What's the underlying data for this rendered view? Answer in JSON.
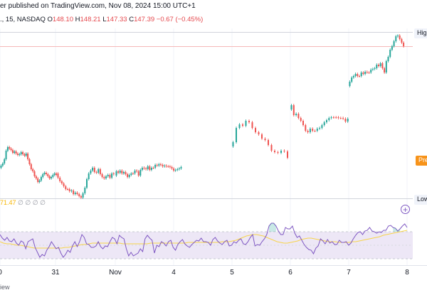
{
  "header": {
    "published_text": "er published on TradingView.com, Nov 08, 2024 15:00 UTC+1",
    "symbol_text": "., 15, NASDAQ",
    "ohlc": {
      "open_label": "O",
      "open": "148.10",
      "high_label": "H",
      "high": "148.21",
      "low_label": "L",
      "low": "147.33",
      "close_label": "C",
      "close": "147.39",
      "change": "−0.67 (−0.45%)"
    }
  },
  "price_tags": {
    "high": "High",
    "pre": "Pre",
    "low": "Low"
  },
  "rsi_legend": {
    "value": "71.47",
    "zeros": "∅ ∅ ∅ ∅"
  },
  "footer": {
    "text": "iew"
  },
  "colors": {
    "up": "#26a69a",
    "down": "#ef5350",
    "rsi": "#7e57c2",
    "rsi_ma": "#f7d44a",
    "band": "#ede7f6",
    "pre": "#f7931a"
  },
  "chart_data": {
    "type": "candlestick",
    "x_tick_labels": [
      "0",
      "31",
      "Nov",
      "4",
      "5",
      "6",
      "7",
      "8"
    ],
    "sessions": [
      {
        "label": "0",
        "closes": [
          233,
          230,
          224,
          212,
          207,
          209,
          211,
          215,
          213,
          216,
          218,
          217,
          214,
          217,
          219,
          216,
          224,
          231,
          238,
          241,
          248,
          251,
          256,
          254,
          249,
          245,
          243,
          245,
          248,
          251,
          249,
          246,
          244,
          246
        ]
      },
      {
        "label": "31",
        "closes": [
          250,
          255,
          258,
          262,
          266,
          266,
          269,
          268,
          273,
          271,
          273,
          276,
          278,
          272,
          264,
          252,
          244,
          240,
          236,
          242,
          243,
          238,
          245,
          249,
          251,
          248,
          246,
          250,
          244,
          245
        ]
      },
      {
        "label": "Nov",
        "closes": [
          241,
          243,
          240,
          244,
          242,
          245,
          249,
          246,
          244,
          244,
          240,
          241,
          247,
          239,
          236,
          237,
          238,
          234,
          239,
          236,
          236,
          232,
          233,
          231,
          232,
          234,
          233,
          234,
          234,
          235,
          237,
          240,
          239,
          238,
          237,
          235
        ]
      },
      {
        "label": "5",
        "closes": [
          200,
          180,
          175,
          177,
          170,
          172,
          180,
          186,
          189,
          195,
          197,
          204,
          212,
          214,
          215,
          212,
          213,
          222
        ]
      },
      {
        "label": "6",
        "closes": [
          148,
          162,
          160,
          166,
          170,
          176,
          184,
          186,
          181,
          184,
          184,
          181,
          180,
          176,
          172,
          169,
          166,
          165,
          165,
          165,
          166,
          166,
          167,
          171,
          167
        ]
      },
      {
        "label": "7",
        "closes": [
          115,
          109,
          107,
          104,
          107,
          107,
          102,
          104,
          101,
          102,
          102,
          98,
          97,
          96,
          91,
          93,
          89,
          96,
          102,
          86,
          80,
          70,
          65,
          58,
          51,
          50,
          55,
          60,
          65
        ]
      }
    ],
    "rsi_value": 71.47,
    "rsi": [
      330,
      335,
      338,
      334,
      339,
      340,
      336,
      342,
      345,
      339,
      341,
      350,
      340,
      338,
      336,
      348,
      355,
      362,
      358,
      360,
      352,
      347,
      340,
      345,
      350,
      348,
      356,
      362,
      358,
      352,
      355,
      346,
      340,
      347,
      340,
      330,
      334,
      343,
      344,
      348,
      348,
      346,
      340,
      347,
      350,
      346,
      347,
      340,
      334,
      336,
      343,
      331,
      334,
      336,
      350,
      360,
      355,
      360,
      358,
      356,
      350,
      354,
      336,
      331,
      335,
      338,
      356,
      345,
      347,
      340,
      342,
      346,
      340,
      338,
      348,
      352,
      344,
      340,
      337,
      343,
      346,
      348,
      344,
      341,
      338,
      339,
      335,
      340,
      340,
      341,
      345,
      337,
      334,
      339,
      342,
      344,
      340,
      338,
      346,
      345,
      340,
      342,
      338,
      336,
      343,
      344,
      340,
      334,
      330,
      346,
      344,
      345,
      340,
      336,
      330,
      318,
      314,
      314,
      318,
      325,
      330,
      330,
      320,
      322,
      322,
      318,
      328,
      334,
      332,
      338,
      344,
      348,
      351,
      352,
      357,
      349,
      346,
      336,
      339,
      343,
      337,
      342,
      340,
      344,
      344,
      338,
      341,
      341,
      340,
      345,
      342,
      336,
      331,
      327,
      326,
      330,
      325,
      324,
      320,
      325,
      326,
      328,
      326,
      327,
      324,
      324,
      318,
      317,
      320,
      321,
      325,
      322,
      318,
      315,
      320
    ],
    "rsi_ma": [
      340,
      342,
      343,
      343,
      344,
      345,
      345,
      346,
      347,
      348,
      349,
      349,
      349,
      349,
      349,
      349,
      349,
      349,
      349,
      348,
      348,
      347,
      346,
      345,
      344,
      344,
      343,
      342,
      342,
      342,
      342,
      342,
      342,
      342,
      342,
      342,
      343,
      343,
      343,
      343,
      343,
      343,
      343,
      343,
      342,
      342,
      342,
      342,
      342,
      342,
      342,
      342,
      342,
      342,
      342,
      341,
      341,
      341,
      341,
      341,
      341,
      341,
      341,
      341,
      341,
      340,
      340,
      340,
      339,
      338,
      336,
      334,
      332,
      331,
      330,
      330,
      331,
      332,
      334,
      336,
      338,
      340,
      341,
      342,
      342,
      341,
      340,
      339,
      337,
      336,
      335,
      335,
      336,
      337,
      338,
      339,
      340,
      340,
      340,
      341,
      341,
      341,
      341,
      340,
      340,
      339,
      338,
      337,
      336,
      335,
      334,
      333,
      331,
      330,
      329,
      328,
      327,
      326,
      325,
      324
    ]
  }
}
